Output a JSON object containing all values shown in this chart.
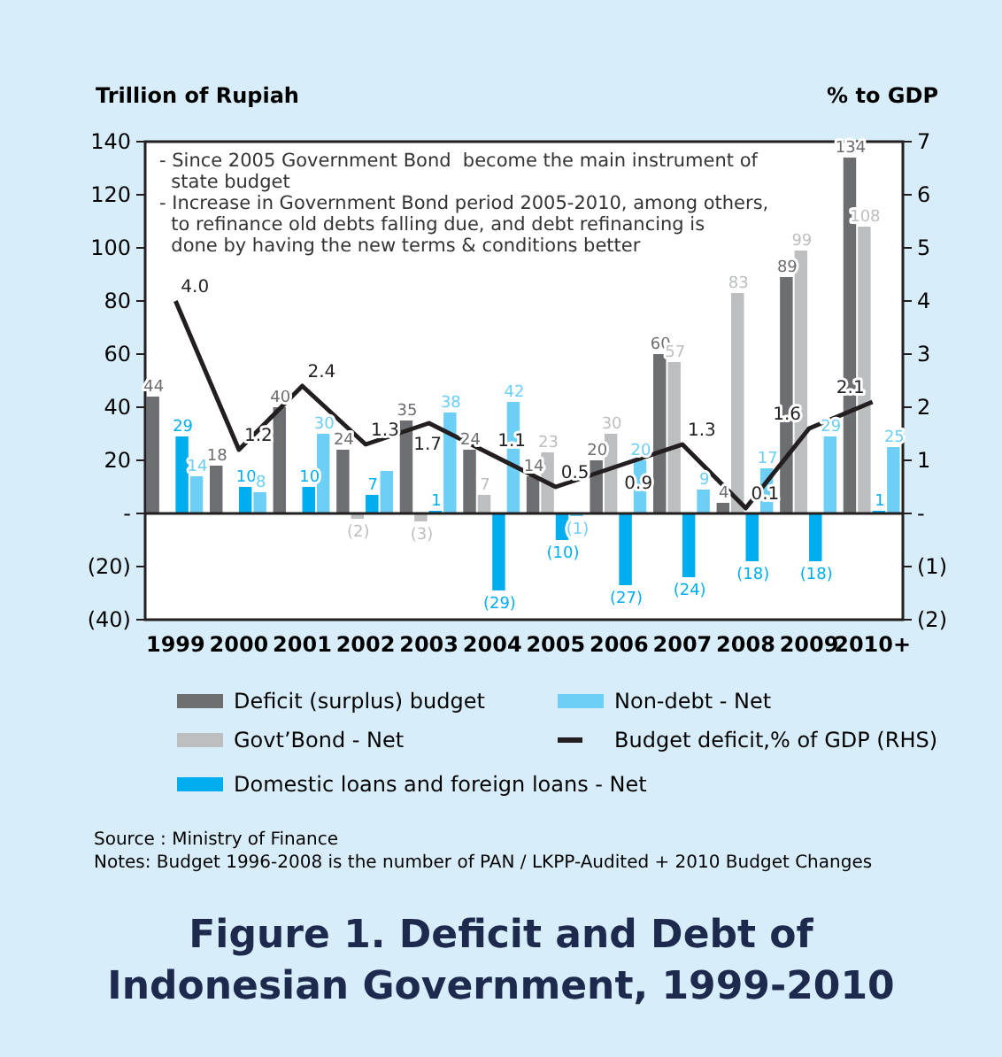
{
  "chart_data": {
    "type": "bar",
    "title": "Figure 1. Deficit and Debt of Indonesian Government, 1999-2010",
    "ylabel": "Trillion of Rupiah",
    "y2label": "% to GDP",
    "categories": [
      "1999",
      "2000",
      "2001",
      "2002",
      "2003",
      "2004",
      "2005",
      "2006",
      "2007",
      "2008",
      "2009",
      "2010+"
    ],
    "series": [
      {
        "name": "Deficit (surplus) budget",
        "color": "#6d6e71",
        "values": [
          44,
          18,
          40,
          24,
          35,
          24,
          14,
          20,
          60,
          4,
          89,
          134
        ],
        "value_labels": [
          "44",
          "18",
          "40",
          "24",
          "35",
          "24",
          "14",
          "20",
          "60",
          "4",
          "89",
          "134"
        ]
      },
      {
        "name": "Govt’Bond - Net",
        "color": "#bcbec0",
        "values": [
          null,
          null,
          null,
          -2,
          -3,
          7,
          23,
          30,
          57,
          83,
          99,
          108
        ],
        "value_labels": [
          null,
          null,
          null,
          "(2)",
          "(3)",
          "7",
          "23",
          "30",
          "57",
          "83",
          "99",
          "108"
        ]
      },
      {
        "name": "Domestic loans and foreign loans - Net",
        "color": "#00aeef",
        "values": [
          29,
          10,
          10,
          7,
          1,
          -29,
          -10,
          -27,
          -24,
          -18,
          -18,
          1
        ],
        "value_labels": [
          "29",
          "10",
          "10",
          "7",
          "1",
          "(29)",
          "(10)",
          "(27)",
          "(24)",
          "(18)",
          "(18)",
          "1"
        ]
      },
      {
        "name": "Non-debt - Net",
        "color": "#6dcff6",
        "values": [
          14,
          8,
          30,
          16,
          38,
          42,
          -1,
          20,
          9,
          17,
          29,
          25
        ],
        "value_labels": [
          "14",
          "8",
          "30",
          null,
          "38",
          "42",
          "(1)",
          "20",
          "9",
          "17",
          "29",
          "25"
        ]
      },
      {
        "name": "Budget deficit,% of GDP (RHS)",
        "type": "line",
        "axis": "y2",
        "color": "#231f20",
        "values": [
          4.0,
          1.2,
          2.4,
          1.3,
          1.7,
          1.1,
          0.5,
          0.9,
          1.3,
          0.1,
          1.6,
          2.1
        ],
        "value_labels": [
          "4.0",
          "1.2",
          "2.4",
          "1.3",
          "1.7",
          "1.1",
          "0.5",
          "0.9",
          "1.3",
          "0.1",
          "1.6",
          "2.1"
        ]
      }
    ],
    "ylim": [
      -40,
      140
    ],
    "yticks": [
      {
        "value": -40,
        "label": "(40)"
      },
      {
        "value": -20,
        "label": "(20)"
      },
      {
        "value": 0,
        "label": "-"
      },
      20,
      40,
      60,
      80,
      100,
      120,
      140
    ],
    "y2lim": [
      -2,
      7
    ],
    "y2ticks": [
      {
        "value": -2,
        "label": "(2)"
      },
      {
        "value": -1,
        "label": "(1)"
      },
      {
        "value": 0,
        "label": "-"
      },
      1,
      2,
      3,
      4,
      5,
      6,
      7
    ],
    "legend": "bottom",
    "marker": "none",
    "line_style": "solid",
    "annotations": [
      "- Since 2005 Government Bond  become the main instrument of state budget",
      "- Increase in Government Bond period 2005-2010, among others, to refinance old debts falling due, and debt refinancing is done by having the new terms & conditions better",
      "Source : Ministry of Finance",
      "Notes: Budget 1996-2008 is the number of PAN / LKPP-Audited + 2010 Budget Changes"
    ]
  }
}
